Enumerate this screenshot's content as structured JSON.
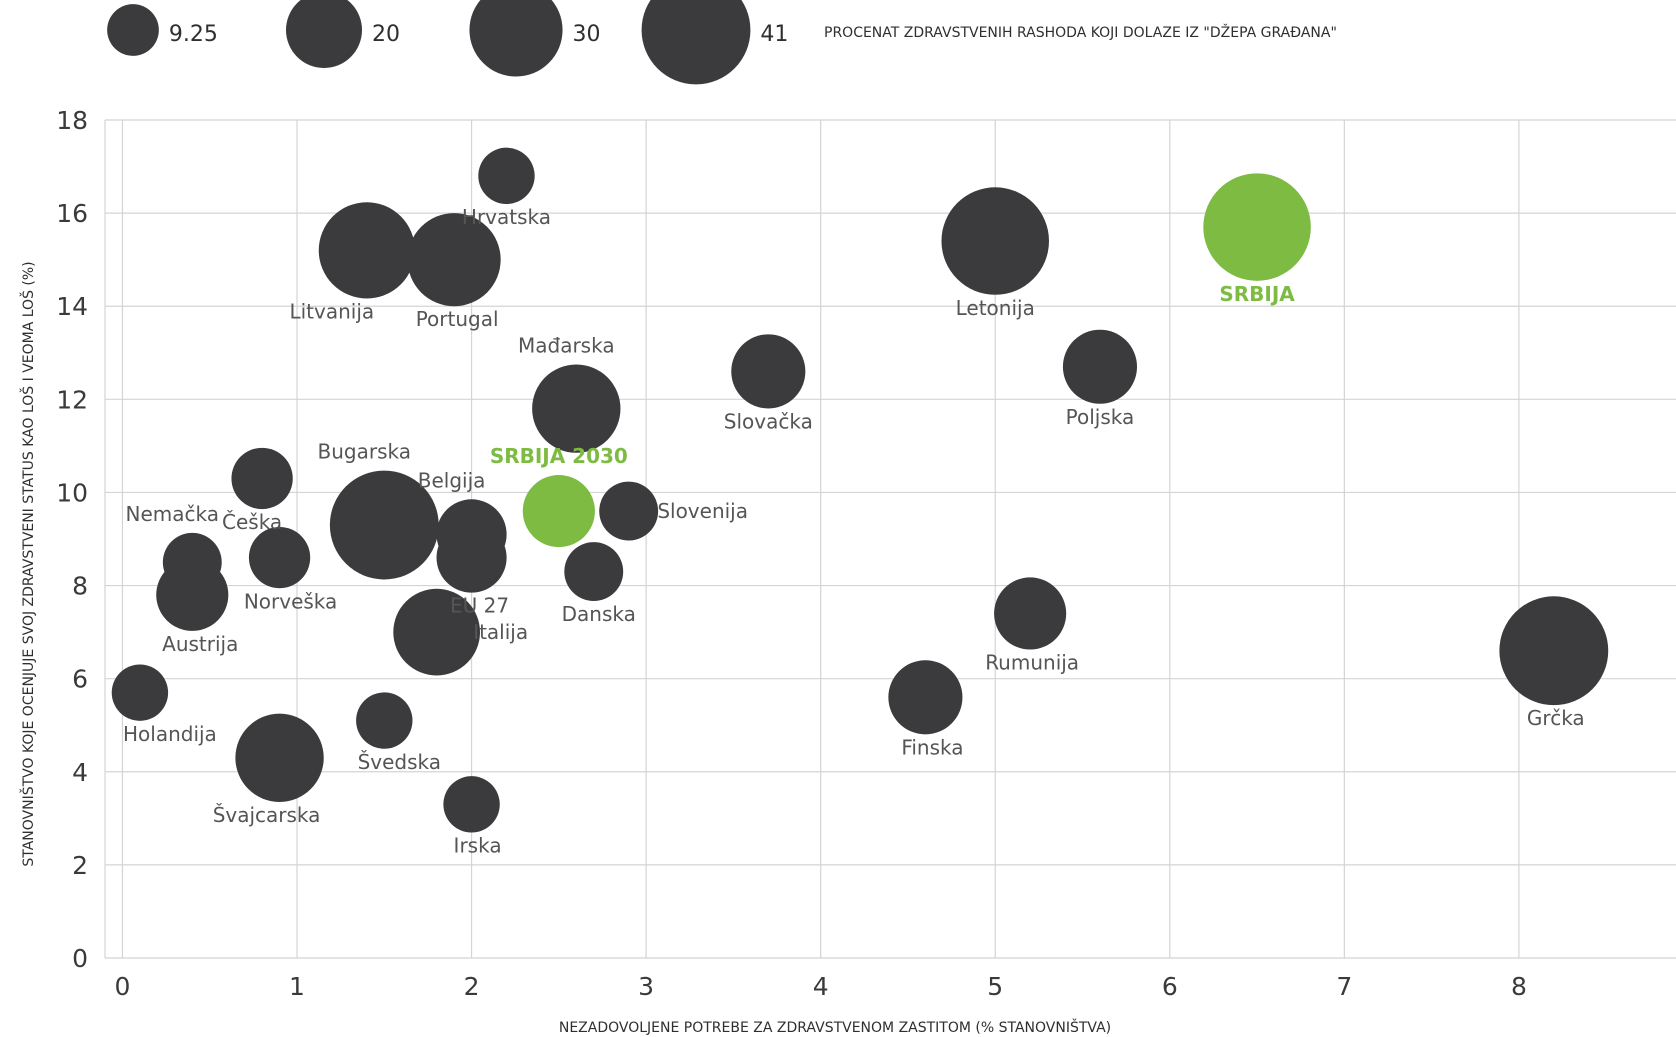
{
  "chart_data": {
    "type": "scatter",
    "subtype": "bubble",
    "xlabel": "NEZADOVOLJENE POTREBE ZA ZDRAVSTVENOM ZASTITOM (% STANOVNIŠTVA)",
    "ylabel": "STANOVNIŠTVO KOJE OCENJUJE SVOJ ZDRAVSTVENI STATUS KAO LOŠ I VEOMA LOŠ (%)",
    "xlim": [
      -0.1,
      8.9
    ],
    "ylim": [
      0,
      18
    ],
    "xticks": [
      "0",
      "1",
      "2",
      "3",
      "4",
      "5",
      "6",
      "7",
      "8"
    ],
    "yticks": [
      "0",
      "2",
      "4",
      "6",
      "8",
      "10",
      "12",
      "14",
      "16",
      "18"
    ],
    "grid": true,
    "size_legend": {
      "title": "PROCENAT ZDRAVSTVENIH RASHODA KOJI DOLAZE IZ \"DŽEPA GRAĐANA\"",
      "items": [
        {
          "label": "9.25",
          "value": 9.25
        },
        {
          "label": "20",
          "value": 20
        },
        {
          "label": "30",
          "value": 30
        },
        {
          "label": "41",
          "value": 41
        }
      ]
    },
    "colors": {
      "default": "#3b3b3d",
      "highlight": "#7dbb42"
    },
    "points": [
      {
        "name": "Hrvatska",
        "x": 2.2,
        "y": 16.8,
        "size": 11,
        "highlight": false
      },
      {
        "name": "Litvanija",
        "x": 1.4,
        "y": 15.2,
        "size": 32,
        "highlight": false
      },
      {
        "name": "Portugal",
        "x": 1.9,
        "y": 15.0,
        "size": 30,
        "highlight": false
      },
      {
        "name": "Letonija",
        "x": 5.0,
        "y": 15.4,
        "size": 40,
        "highlight": false
      },
      {
        "name": "SRBIJA",
        "x": 6.5,
        "y": 15.7,
        "size": 40,
        "highlight": true
      },
      {
        "name": "Mađarska",
        "x": 2.6,
        "y": 11.8,
        "size": 27,
        "highlight": false
      },
      {
        "name": "Slovačka",
        "x": 3.7,
        "y": 12.6,
        "size": 19,
        "highlight": false
      },
      {
        "name": "Poljska",
        "x": 5.6,
        "y": 12.7,
        "size": 19,
        "highlight": false
      },
      {
        "name": "Češka",
        "x": 0.8,
        "y": 10.3,
        "size": 13,
        "highlight": false
      },
      {
        "name": "Bugarska",
        "x": 1.5,
        "y": 9.3,
        "size": 41,
        "highlight": false
      },
      {
        "name": "SRBIJA 2030",
        "x": 2.5,
        "y": 9.6,
        "size": 18,
        "highlight": true
      },
      {
        "name": "Belgija",
        "x": 2.0,
        "y": 9.1,
        "size": 17,
        "highlight": false
      },
      {
        "name": "EU 27",
        "x": 2.0,
        "y": 8.6,
        "size": 17,
        "highlight": false
      },
      {
        "name": "Slovenija",
        "x": 2.9,
        "y": 9.6,
        "size": 12,
        "highlight": false
      },
      {
        "name": "Nemačka",
        "x": 0.4,
        "y": 8.5,
        "size": 12,
        "highlight": false
      },
      {
        "name": "Norveška",
        "x": 0.9,
        "y": 8.6,
        "size": 13,
        "highlight": false
      },
      {
        "name": "Austrija",
        "x": 0.4,
        "y": 7.8,
        "size": 18,
        "highlight": false
      },
      {
        "name": "Danska",
        "x": 2.7,
        "y": 8.3,
        "size": 12,
        "highlight": false
      },
      {
        "name": "Italija",
        "x": 1.8,
        "y": 7.0,
        "size": 26,
        "highlight": false
      },
      {
        "name": "Rumunija",
        "x": 5.2,
        "y": 7.4,
        "size": 18,
        "highlight": false
      },
      {
        "name": "Grčka",
        "x": 8.2,
        "y": 6.6,
        "size": 41,
        "highlight": false
      },
      {
        "name": "Holandija",
        "x": 0.1,
        "y": 5.7,
        "size": 11,
        "highlight": false
      },
      {
        "name": "Finska",
        "x": 4.6,
        "y": 5.6,
        "size": 19,
        "highlight": false
      },
      {
        "name": "Švedska",
        "x": 1.5,
        "y": 5.1,
        "size": 11,
        "highlight": false
      },
      {
        "name": "Švajcarska",
        "x": 0.9,
        "y": 4.3,
        "size": 27,
        "highlight": false
      },
      {
        "name": "Irska",
        "x": 2.0,
        "y": 3.3,
        "size": 11,
        "highlight": false
      }
    ]
  }
}
